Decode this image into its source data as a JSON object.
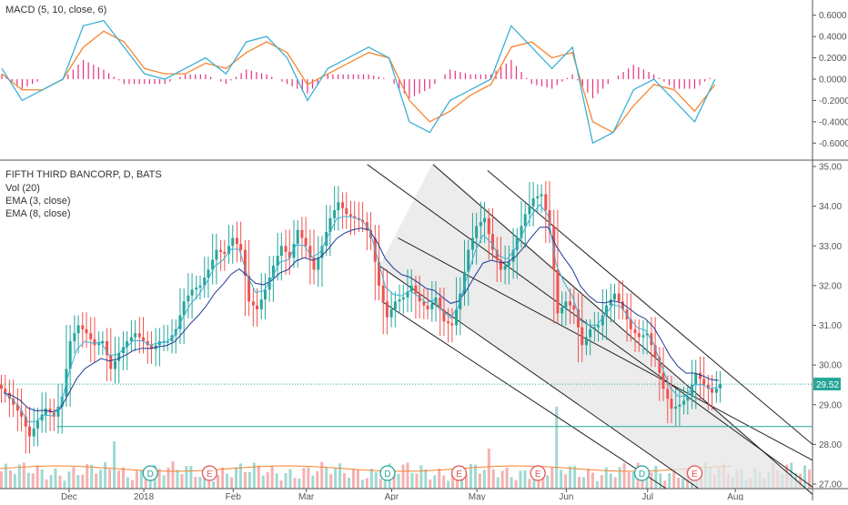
{
  "colors": {
    "up": "#26a69a",
    "down": "#ef5350",
    "macd_line": "#3cb0d6",
    "signal_line": "#f7852f",
    "histogram": "#e5307f",
    "vol_up": "#9fd9d2",
    "vol_down": "#f5b1b0",
    "ema3": "#3cb0d6",
    "ema8": "#1f3a93",
    "channel_fill": "#e6e6e6",
    "hline": "#26a69a",
    "price_badge": "#26a69a",
    "event_marker": "#e25555"
  },
  "macd_panel": {
    "title": "MACD (5, 10, close, 6)",
    "ticks": [
      "0.6000",
      "0.4000",
      "0.2000",
      "0.0000",
      "-0.2000",
      "-0.4000",
      "-0.6000"
    ],
    "tick_values": [
      0.6,
      0.4,
      0.2,
      0.0,
      -0.2,
      -0.4,
      -0.6
    ]
  },
  "price_panel": {
    "title": "FIFTH THIRD BANCORP, D, BATS",
    "legend": [
      "Vol (20)",
      "EMA (3, close)",
      "EMA (8, close)"
    ],
    "ticks": [
      "35.00",
      "34.00",
      "33.00",
      "32.00",
      "31.00",
      "30.00",
      "29.00",
      "28.00",
      "27.00"
    ],
    "tick_values": [
      35,
      34,
      33,
      32,
      31,
      30,
      29,
      28,
      27
    ],
    "last_price": "29.52",
    "horizontal_level": 28.45
  },
  "x_axis": {
    "labels": [
      "Dec",
      "2018",
      "Feb",
      "Mar",
      "Apr",
      "May",
      "Jun",
      "Jul",
      "Aug"
    ],
    "positions": [
      0.085,
      0.177,
      0.287,
      0.377,
      0.482,
      0.587,
      0.697,
      0.797,
      0.905
    ]
  },
  "events": [
    {
      "type": "dividend",
      "label": "D",
      "at": 0.185
    },
    {
      "type": "earnings",
      "label": "E",
      "at": 0.258
    },
    {
      "type": "dividend",
      "label": "D",
      "at": 0.477
    },
    {
      "type": "earnings",
      "label": "E",
      "at": 0.565
    },
    {
      "type": "earnings",
      "label": "E",
      "at": 0.662
    },
    {
      "type": "dividend",
      "label": "D",
      "at": 0.79
    },
    {
      "type": "earnings",
      "label": "E",
      "at": 0.855
    }
  ],
  "chart_data": [
    {
      "type": "candlestick",
      "title": "FIFTH THIRD BANCORP, D, BATS",
      "x_range": [
        "Nov 2017",
        "Aug 2018"
      ],
      "ylim": [
        27,
        35
      ],
      "price_path": [
        {
          "x": 0.0,
          "c": 29.3
        },
        {
          "x": 0.01,
          "c": 29.0
        },
        {
          "x": 0.02,
          "c": 28.7
        },
        {
          "x": 0.03,
          "c": 28.2
        },
        {
          "x": 0.04,
          "c": 28.6
        },
        {
          "x": 0.05,
          "c": 28.9
        },
        {
          "x": 0.06,
          "c": 28.7
        },
        {
          "x": 0.07,
          "c": 29.2
        },
        {
          "x": 0.08,
          "c": 30.6
        },
        {
          "x": 0.09,
          "c": 31.0
        },
        {
          "x": 0.1,
          "c": 30.8
        },
        {
          "x": 0.11,
          "c": 30.5
        },
        {
          "x": 0.12,
          "c": 30.6
        },
        {
          "x": 0.13,
          "c": 29.9
        },
        {
          "x": 0.14,
          "c": 30.3
        },
        {
          "x": 0.15,
          "c": 30.6
        },
        {
          "x": 0.16,
          "c": 30.8
        },
        {
          "x": 0.17,
          "c": 30.6
        },
        {
          "x": 0.18,
          "c": 30.4
        },
        {
          "x": 0.19,
          "c": 30.6
        },
        {
          "x": 0.2,
          "c": 30.6
        },
        {
          "x": 0.21,
          "c": 30.9
        },
        {
          "x": 0.22,
          "c": 31.6
        },
        {
          "x": 0.23,
          "c": 31.9
        },
        {
          "x": 0.24,
          "c": 32.0
        },
        {
          "x": 0.25,
          "c": 32.4
        },
        {
          "x": 0.26,
          "c": 32.9
        },
        {
          "x": 0.27,
          "c": 32.8
        },
        {
          "x": 0.28,
          "c": 33.2
        },
        {
          "x": 0.29,
          "c": 32.9
        },
        {
          "x": 0.3,
          "c": 31.6
        },
        {
          "x": 0.31,
          "c": 31.4
        },
        {
          "x": 0.32,
          "c": 31.9
        },
        {
          "x": 0.33,
          "c": 32.5
        },
        {
          "x": 0.34,
          "c": 33.0
        },
        {
          "x": 0.35,
          "c": 32.7
        },
        {
          "x": 0.36,
          "c": 33.4
        },
        {
          "x": 0.37,
          "c": 33.0
        },
        {
          "x": 0.38,
          "c": 32.4
        },
        {
          "x": 0.39,
          "c": 33.0
        },
        {
          "x": 0.4,
          "c": 33.7
        },
        {
          "x": 0.41,
          "c": 34.1
        },
        {
          "x": 0.42,
          "c": 33.8
        },
        {
          "x": 0.43,
          "c": 33.7
        },
        {
          "x": 0.44,
          "c": 33.6
        },
        {
          "x": 0.45,
          "c": 33.2
        },
        {
          "x": 0.46,
          "c": 32.0
        },
        {
          "x": 0.47,
          "c": 31.2
        },
        {
          "x": 0.48,
          "c": 31.6
        },
        {
          "x": 0.49,
          "c": 31.7
        },
        {
          "x": 0.5,
          "c": 32.0
        },
        {
          "x": 0.51,
          "c": 31.6
        },
        {
          "x": 0.52,
          "c": 31.4
        },
        {
          "x": 0.53,
          "c": 31.7
        },
        {
          "x": 0.54,
          "c": 31.1
        },
        {
          "x": 0.55,
          "c": 31.0
        },
        {
          "x": 0.56,
          "c": 31.8
        },
        {
          "x": 0.57,
          "c": 32.9
        },
        {
          "x": 0.58,
          "c": 33.5
        },
        {
          "x": 0.59,
          "c": 33.7
        },
        {
          "x": 0.6,
          "c": 32.9
        },
        {
          "x": 0.61,
          "c": 32.4
        },
        {
          "x": 0.62,
          "c": 32.6
        },
        {
          "x": 0.63,
          "c": 33.2
        },
        {
          "x": 0.64,
          "c": 33.8
        },
        {
          "x": 0.65,
          "c": 34.2
        },
        {
          "x": 0.66,
          "c": 34.3
        },
        {
          "x": 0.67,
          "c": 33.5
        },
        {
          "x": 0.68,
          "c": 31.3
        },
        {
          "x": 0.69,
          "c": 31.6
        },
        {
          "x": 0.7,
          "c": 31.4
        },
        {
          "x": 0.71,
          "c": 30.5
        },
        {
          "x": 0.72,
          "c": 30.9
        },
        {
          "x": 0.73,
          "c": 31.0
        },
        {
          "x": 0.74,
          "c": 31.5
        },
        {
          "x": 0.75,
          "c": 31.8
        },
        {
          "x": 0.76,
          "c": 31.4
        },
        {
          "x": 0.77,
          "c": 30.9
        },
        {
          "x": 0.78,
          "c": 30.7
        },
        {
          "x": 0.79,
          "c": 30.8
        },
        {
          "x": 0.8,
          "c": 30.2
        },
        {
          "x": 0.81,
          "c": 29.4
        },
        {
          "x": 0.82,
          "c": 28.9
        },
        {
          "x": 0.83,
          "c": 29.0
        },
        {
          "x": 0.84,
          "c": 29.2
        },
        {
          "x": 0.85,
          "c": 29.8
        },
        {
          "x": 0.86,
          "c": 29.5
        },
        {
          "x": 0.87,
          "c": 29.3
        },
        {
          "x": 0.88,
          "c": 29.52
        }
      ],
      "horizontal_line": 28.45,
      "last_value": 29.52
    },
    {
      "type": "line",
      "title": "MACD (5, 10, close, 6)",
      "ylim": [
        -0.7,
        0.7
      ],
      "series": [
        {
          "name": "MACD",
          "values": [
            0.1,
            -0.2,
            -0.1,
            0.0,
            0.5,
            0.55,
            0.3,
            0.05,
            0.0,
            0.1,
            0.2,
            0.05,
            0.35,
            0.4,
            0.2,
            -0.2,
            0.1,
            0.2,
            0.3,
            0.2,
            -0.4,
            -0.5,
            -0.2,
            -0.1,
            0.0,
            0.5,
            0.3,
            0.1,
            0.3,
            -0.6,
            -0.5,
            -0.1,
            0.0,
            -0.2,
            -0.4,
            0.0
          ]
        },
        {
          "name": "Signal",
          "values": [
            0.05,
            -0.1,
            -0.1,
            0.0,
            0.3,
            0.45,
            0.35,
            0.1,
            0.05,
            0.05,
            0.15,
            0.1,
            0.25,
            0.35,
            0.25,
            -0.05,
            0.05,
            0.15,
            0.25,
            0.2,
            -0.2,
            -0.4,
            -0.3,
            -0.15,
            -0.05,
            0.3,
            0.35,
            0.2,
            0.25,
            -0.4,
            -0.5,
            -0.25,
            -0.05,
            -0.1,
            -0.3,
            -0.05
          ]
        }
      ]
    }
  ]
}
